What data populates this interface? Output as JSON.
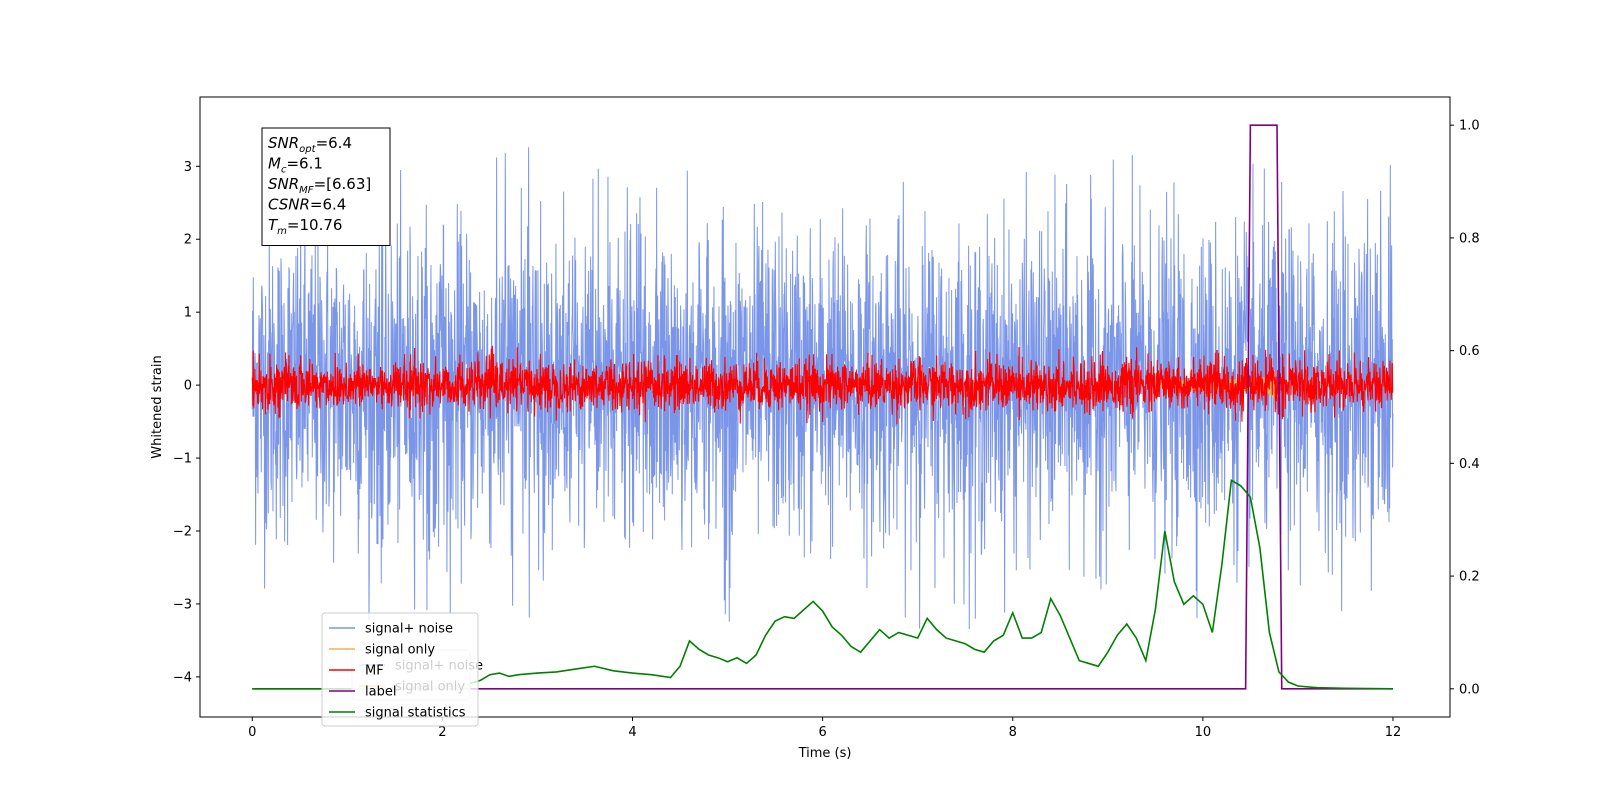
{
  "chart_data": {
    "type": "line",
    "xlabel": "Time (s)",
    "ylabel": "Whitened strain",
    "xlim": [
      -0.55,
      12.6
    ],
    "ylim": [
      -4.55,
      3.95
    ],
    "y2lim": [
      -0.05,
      1.05
    ],
    "xticks": [
      0,
      2,
      4,
      6,
      8,
      10,
      12
    ],
    "xtick_labels": [
      "0",
      "2",
      "4",
      "6",
      "8",
      "10",
      "12"
    ],
    "yticks": [
      -4,
      -3,
      -2,
      -1,
      0,
      1,
      2,
      3
    ],
    "ytick_labels": [
      "−4",
      "−3",
      "−2",
      "−1",
      "0",
      "1",
      "2",
      "3"
    ],
    "y2ticks": [
      0.0,
      0.2,
      0.4,
      0.6,
      0.8,
      1.0
    ],
    "y2tick_labels": [
      "0.0",
      "0.2",
      "0.4",
      "0.6",
      "0.8",
      "1.0"
    ],
    "legend_placement": "lower-left",
    "annotation": {
      "lines": [
        {
          "sym": "SNR",
          "sub": "opt",
          "val": "=6.4"
        },
        {
          "sym": "M",
          "sub": "c",
          "val": "=6.1"
        },
        {
          "sym": "SNR",
          "sub": "MF",
          "val": "=[6.63]"
        },
        {
          "sym": "CSNR",
          "sub": "",
          "val": "=6.4"
        },
        {
          "sym": "T",
          "sub": "m",
          "val": "=10.76"
        }
      ]
    },
    "series": [
      {
        "name": "signal+ noise",
        "axis": "left",
        "color": "#7b96e8",
        "style": "noise",
        "amplitude": 3.4,
        "x_range": [
          0,
          12
        ]
      },
      {
        "name": "signal only",
        "axis": "left",
        "color": "#f5b04c",
        "style": "chirp",
        "merger_time": 10.76,
        "amplitude": 0.25
      },
      {
        "name": "MF",
        "axis": "left",
        "color": "#ff0000",
        "style": "noise",
        "amplitude": 0.55,
        "x_range": [
          0,
          12
        ]
      },
      {
        "name": "label",
        "axis": "right",
        "color": "#800080",
        "x": [
          0,
          10.45,
          10.5,
          10.78,
          10.83,
          12
        ],
        "y": [
          0,
          0,
          1,
          1,
          0,
          0
        ]
      },
      {
        "name": "signal statistics",
        "axis": "right",
        "color": "#008000",
        "x": [
          0,
          0.5,
          1.0,
          1.5,
          2.0,
          2.2,
          2.4,
          2.5,
          2.6,
          2.7,
          2.8,
          3.0,
          3.2,
          3.4,
          3.6,
          3.8,
          4.0,
          4.2,
          4.4,
          4.5,
          4.6,
          4.7,
          4.8,
          4.9,
          5.0,
          5.1,
          5.2,
          5.3,
          5.4,
          5.5,
          5.6,
          5.7,
          5.8,
          5.9,
          6.0,
          6.1,
          6.2,
          6.3,
          6.4,
          6.5,
          6.6,
          6.7,
          6.8,
          6.9,
          7.0,
          7.1,
          7.2,
          7.3,
          7.4,
          7.5,
          7.6,
          7.7,
          7.8,
          7.9,
          8.0,
          8.1,
          8.2,
          8.3,
          8.4,
          8.5,
          8.6,
          8.7,
          8.8,
          8.9,
          9.0,
          9.1,
          9.2,
          9.3,
          9.4,
          9.5,
          9.6,
          9.7,
          9.8,
          9.9,
          10.0,
          10.1,
          10.2,
          10.3,
          10.4,
          10.5,
          10.6,
          10.7,
          10.8,
          10.9,
          11.0,
          11.2,
          11.5,
          12.0
        ],
        "y": [
          0.0,
          0.0,
          0.0,
          0.002,
          0.004,
          0.005,
          0.015,
          0.025,
          0.028,
          0.022,
          0.025,
          0.028,
          0.03,
          0.035,
          0.04,
          0.032,
          0.028,
          0.025,
          0.02,
          0.04,
          0.085,
          0.07,
          0.06,
          0.055,
          0.048,
          0.055,
          0.045,
          0.06,
          0.095,
          0.12,
          0.128,
          0.125,
          0.14,
          0.155,
          0.138,
          0.11,
          0.095,
          0.075,
          0.065,
          0.085,
          0.105,
          0.09,
          0.1,
          0.095,
          0.09,
          0.125,
          0.105,
          0.09,
          0.085,
          0.08,
          0.07,
          0.065,
          0.085,
          0.095,
          0.135,
          0.09,
          0.09,
          0.1,
          0.16,
          0.13,
          0.09,
          0.05,
          0.045,
          0.04,
          0.065,
          0.095,
          0.115,
          0.09,
          0.05,
          0.14,
          0.28,
          0.19,
          0.15,
          0.165,
          0.15,
          0.1,
          0.22,
          0.37,
          0.36,
          0.34,
          0.25,
          0.1,
          0.03,
          0.012,
          0.005,
          0.002,
          0.001,
          0.0
        ]
      }
    ]
  }
}
